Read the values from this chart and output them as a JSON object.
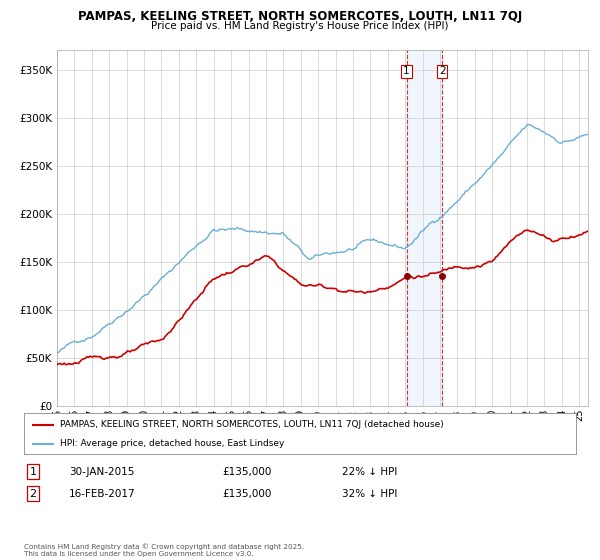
{
  "title_line1": "PAMPAS, KEELING STREET, NORTH SOMERCOTES, LOUTH, LN11 7QJ",
  "title_line2": "Price paid vs. HM Land Registry's House Price Index (HPI)",
  "ylabel_ticks": [
    "£0",
    "£50K",
    "£100K",
    "£150K",
    "£200K",
    "£250K",
    "£300K",
    "£350K"
  ],
  "ytick_values": [
    0,
    50000,
    100000,
    150000,
    200000,
    250000,
    300000,
    350000
  ],
  "ylim": [
    0,
    370000
  ],
  "hpi_color": "#6baed6",
  "price_color": "#cc0000",
  "marker_color": "#8b0000",
  "shade_color": "#d6e8f7",
  "dashed_color": "#cc0000",
  "legend_label_red": "PAMPAS, KEELING STREET, NORTH SOMERCOTES, LOUTH, LN11 7QJ (detached house)",
  "legend_label_blue": "HPI: Average price, detached house, East Lindsey",
  "transaction1_date": "30-JAN-2015",
  "transaction1_price": "£135,000",
  "transaction1_hpi": "22% ↓ HPI",
  "transaction2_date": "16-FEB-2017",
  "transaction2_price": "£135,000",
  "transaction2_hpi": "32% ↓ HPI",
  "footnote": "Contains HM Land Registry data © Crown copyright and database right 2025.\nThis data is licensed under the Open Government Licence v3.0.",
  "start_year": 1995.0,
  "end_year": 2025.5,
  "transaction1_x": 2015.08,
  "transaction2_x": 2017.12,
  "background_color": "#ffffff",
  "grid_color": "#cccccc",
  "xtick_years": [
    1995,
    1996,
    1997,
    1998,
    1999,
    2000,
    2001,
    2002,
    2003,
    2004,
    2005,
    2006,
    2007,
    2008,
    2009,
    2010,
    2011,
    2012,
    2013,
    2014,
    2015,
    2016,
    2017,
    2018,
    2019,
    2020,
    2021,
    2022,
    2023,
    2024,
    2025
  ]
}
